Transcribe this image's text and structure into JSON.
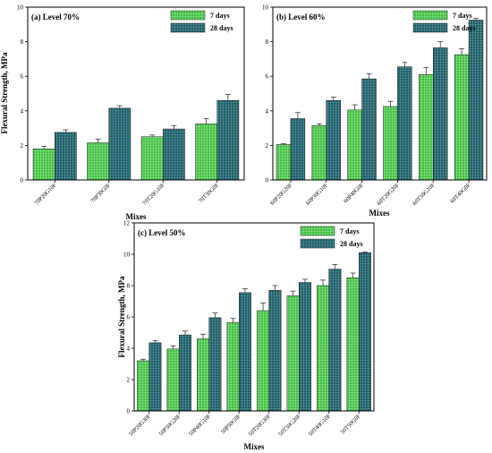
{
  "colors": {
    "days7": "#3fbf3f",
    "days28": "#1e5c66",
    "axis": "#000000",
    "bg": "#ffffff"
  },
  "chart_data": [
    {
      "type": "bar",
      "title": "(a) Level 70%",
      "xlabel": "Mixes",
      "ylabel": "Flexural Strength, MPa",
      "ylim": [
        0,
        10
      ],
      "yticks": [
        "0",
        "2",
        "4",
        "6",
        "8",
        "10"
      ],
      "categories": [
        "70P20G10F",
        "70P30G0F",
        "70T20G10F",
        "70T30G0F"
      ],
      "legend_position": "top-right",
      "series": [
        {
          "name": "7 days",
          "values": [
            1.8,
            2.15,
            2.5,
            3.25
          ],
          "errors": [
            0.15,
            0.2,
            0.1,
            0.3
          ]
        },
        {
          "name": "28 days",
          "values": [
            2.75,
            4.15,
            2.95,
            4.6
          ],
          "errors": [
            0.15,
            0.15,
            0.2,
            0.35
          ]
        }
      ]
    },
    {
      "type": "bar",
      "title": "(b) Level 60%",
      "xlabel": "Mixes",
      "ylabel": "",
      "ylim": [
        0,
        10
      ],
      "yticks": [
        "0",
        "2",
        "4",
        "6",
        "8",
        "10"
      ],
      "categories": [
        "60P20G20F",
        "60P30G10F",
        "60P40G0F",
        "60T20G20F",
        "60T30G10F",
        "60T40G0F"
      ],
      "legend_position": "top-right",
      "series": [
        {
          "name": "7 days",
          "values": [
            2.05,
            3.15,
            4.05,
            4.25,
            6.1,
            7.25
          ],
          "errors": [
            0.05,
            0.1,
            0.3,
            0.3,
            0.4,
            0.35
          ]
        },
        {
          "name": "28 days",
          "values": [
            3.55,
            4.6,
            5.85,
            6.55,
            7.65,
            9.25
          ],
          "errors": [
            0.35,
            0.2,
            0.3,
            0.25,
            0.35,
            0.1
          ]
        }
      ]
    },
    {
      "type": "bar",
      "title": "(c) Level 50%",
      "xlabel": "Mixes",
      "ylabel": "Flexural Strength, MPa",
      "ylim": [
        0,
        12
      ],
      "yticks": [
        "0",
        "2",
        "4",
        "6",
        "8",
        "10",
        "12"
      ],
      "categories": [
        "50P20G30F",
        "50P30G20F",
        "50P40G10F",
        "50P50G0F",
        "50T20G30F",
        "50T30G20F",
        "50T40G10F",
        "50T50G0F"
      ],
      "legend_position": "top-right",
      "series": [
        {
          "name": "7 days",
          "values": [
            3.2,
            3.95,
            4.6,
            5.65,
            6.4,
            7.35,
            8.0,
            8.5
          ],
          "errors": [
            0.1,
            0.2,
            0.3,
            0.25,
            0.5,
            0.3,
            0.35,
            0.3
          ]
        },
        {
          "name": "28 days",
          "values": [
            4.35,
            4.85,
            5.95,
            7.55,
            7.7,
            8.2,
            9.05,
            10.1
          ],
          "errors": [
            0.15,
            0.25,
            0.3,
            0.25,
            0.3,
            0.2,
            0.3,
            0.05
          ]
        }
      ]
    }
  ]
}
